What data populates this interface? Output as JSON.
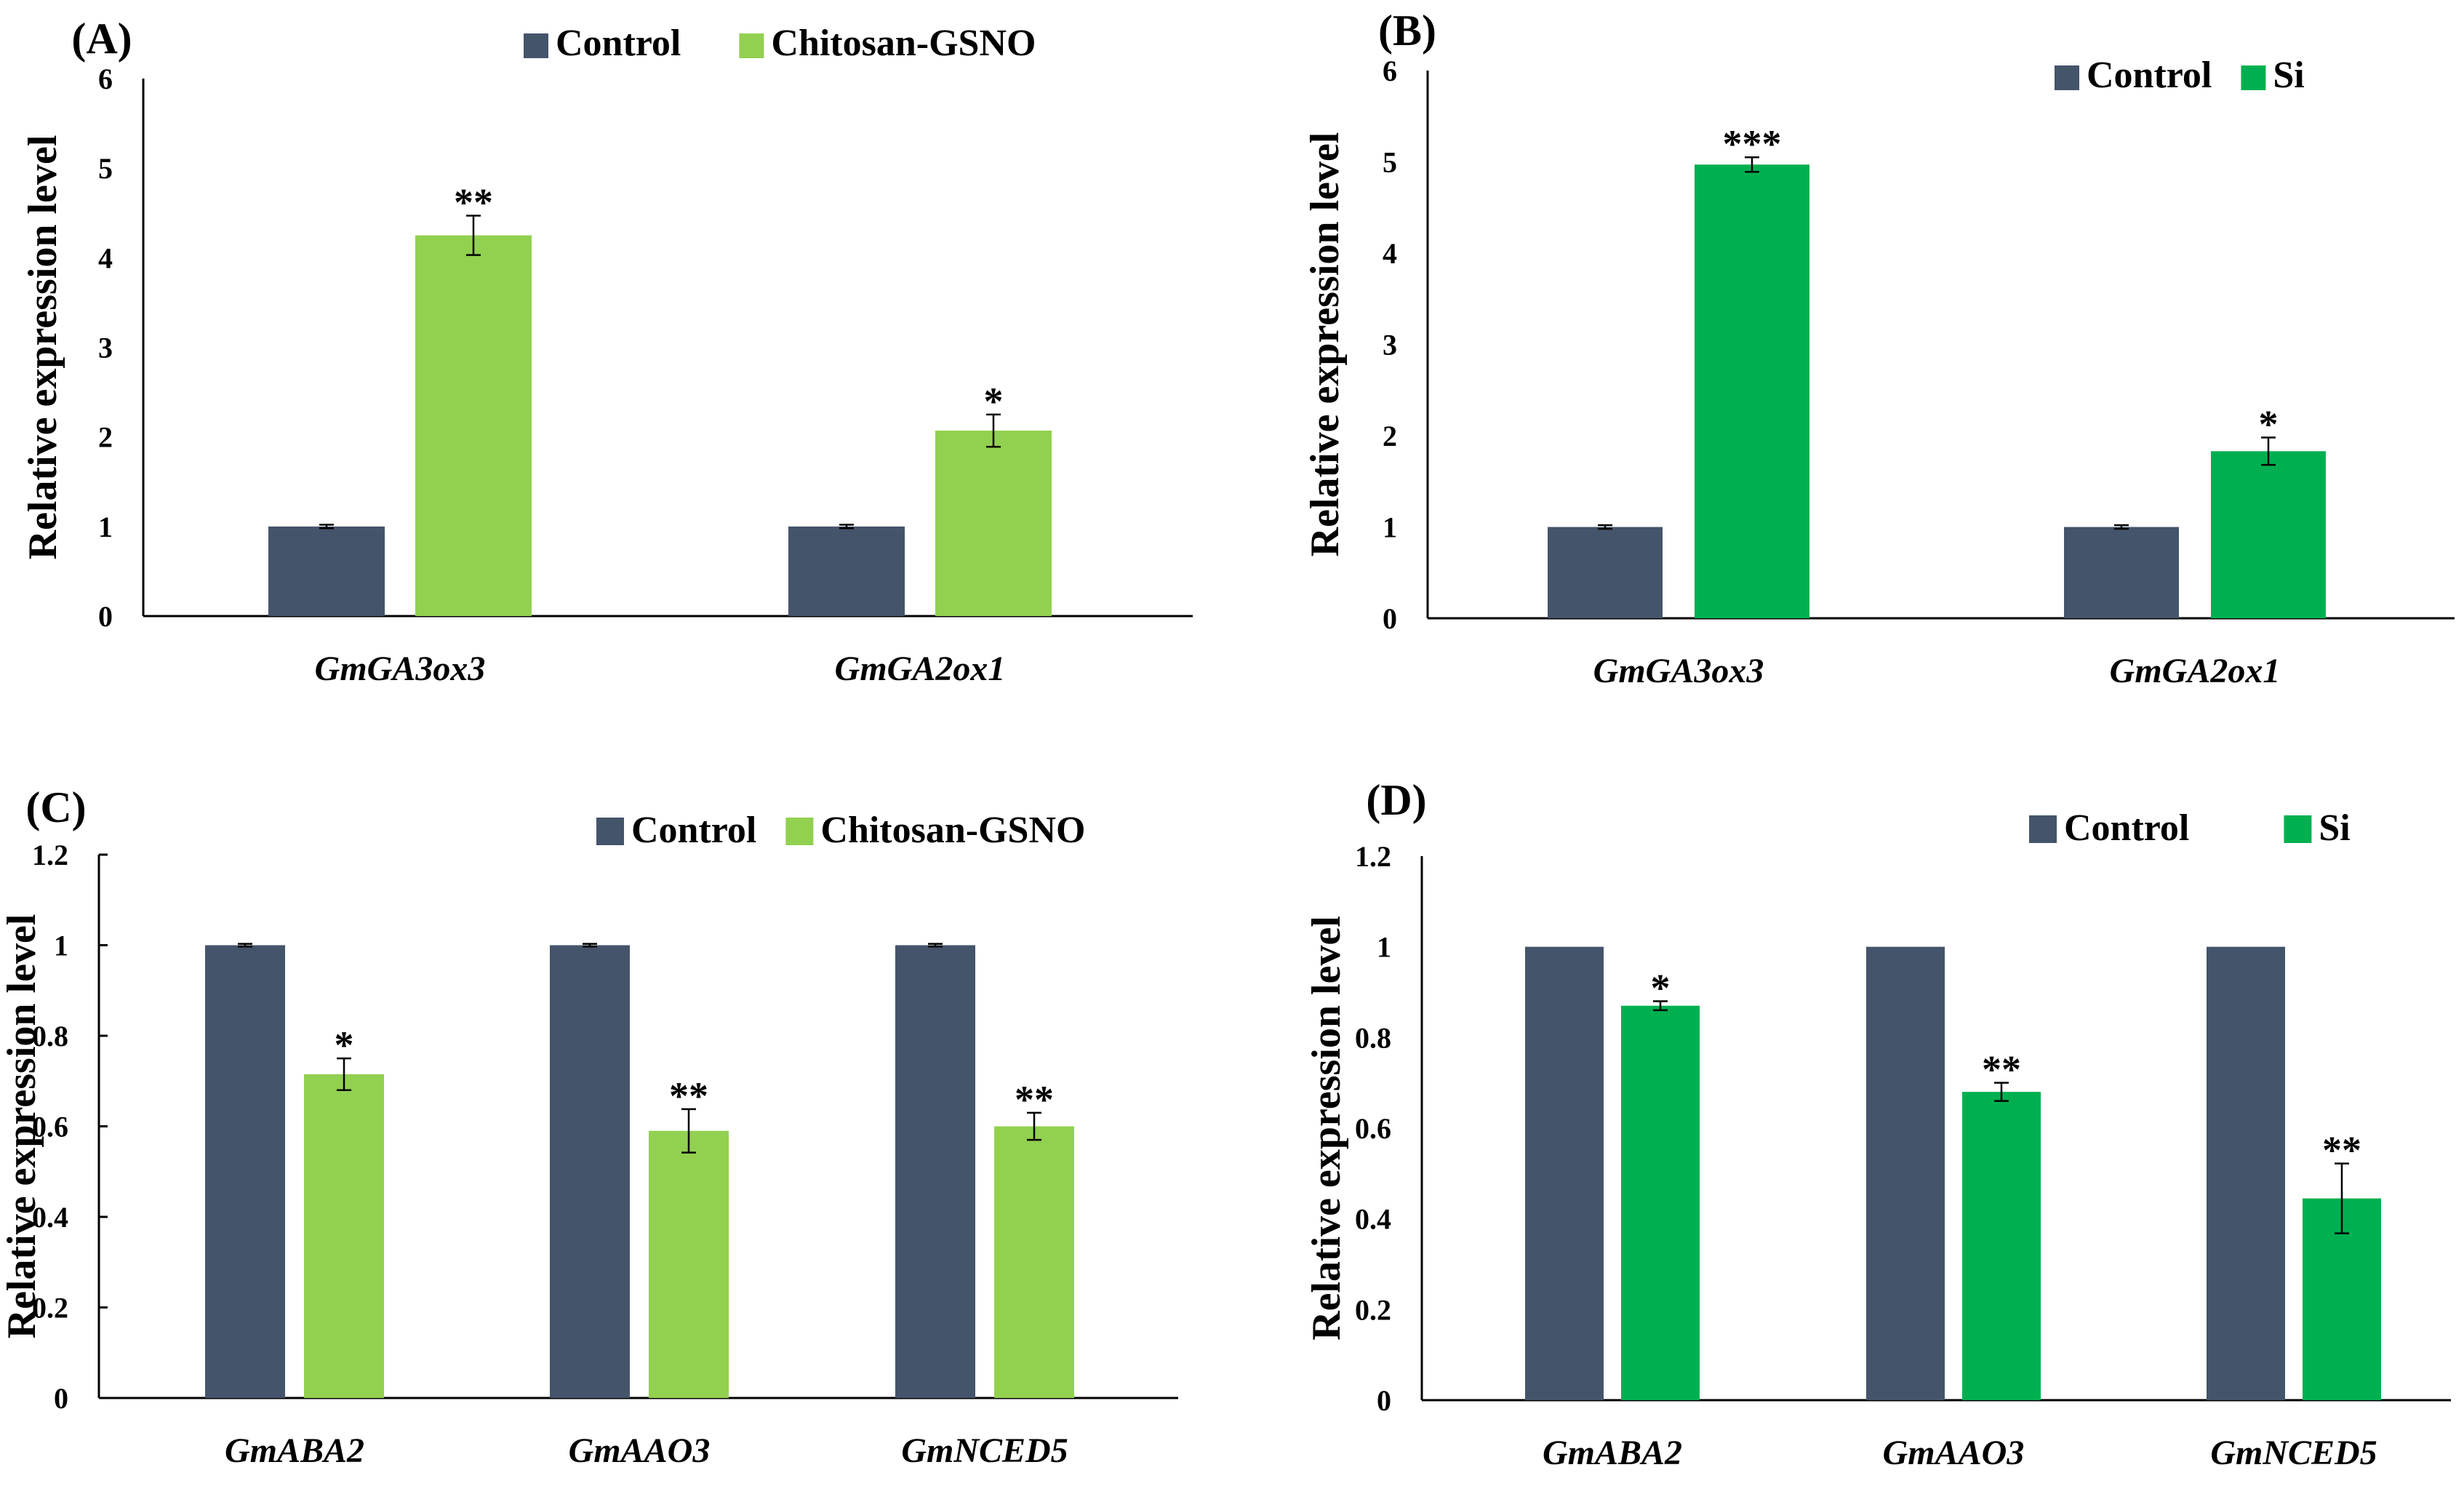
{
  "colors": {
    "control": "#44546A",
    "chitosan": "#92D050",
    "si": "#00B050",
    "axis": "#000000"
  },
  "chart_data": [
    {
      "panel": "(A)",
      "type": "bar",
      "ylabel": "Relative expression level",
      "ylim": [
        0,
        6
      ],
      "yticks": [
        "0",
        "1",
        "2",
        "3",
        "4",
        "5",
        "6"
      ],
      "legend_position": "top-right",
      "categories": [
        "GmGA3ox3",
        "GmGA2ox1"
      ],
      "series": [
        {
          "name": "Control",
          "color_key": "control",
          "values": [
            1.0,
            1.0
          ],
          "errors": [
            0.02,
            0.02
          ],
          "sig": [
            "",
            ""
          ]
        },
        {
          "name": "Chitosan-GSNO",
          "color_key": "chitosan",
          "values": [
            4.25,
            2.07
          ],
          "errors": [
            0.22,
            0.18
          ],
          "sig": [
            "**",
            "*"
          ]
        }
      ]
    },
    {
      "panel": "(B)",
      "type": "bar",
      "ylabel": "Relative expression level",
      "ylim": [
        0,
        6
      ],
      "yticks": [
        "0",
        "1",
        "2",
        "3",
        "4",
        "5",
        "6"
      ],
      "legend_position": "top-right",
      "categories": [
        "GmGA3ox3",
        "GmGA2ox1"
      ],
      "series": [
        {
          "name": "Control",
          "color_key": "control",
          "values": [
            1.0,
            1.0
          ],
          "errors": [
            0.02,
            0.02
          ],
          "sig": [
            "",
            ""
          ]
        },
        {
          "name": "Si",
          "color_key": "si",
          "values": [
            4.97,
            1.83
          ],
          "errors": [
            0.08,
            0.15
          ],
          "sig": [
            "***",
            "*"
          ]
        }
      ]
    },
    {
      "panel": "(C)",
      "type": "bar",
      "ylabel": "Relative expression level",
      "ylim": [
        0,
        1.2
      ],
      "yticks": [
        "0",
        "0.2",
        "0.4",
        "0.6",
        "0.8",
        "1",
        "1.2"
      ],
      "legend_position": "top-right",
      "categories": [
        "GmABA2",
        "GmAAO3",
        "GmNCED5"
      ],
      "series": [
        {
          "name": "Control",
          "color_key": "control",
          "values": [
            1.0,
            1.0,
            1.0
          ],
          "errors": [
            0.003,
            0.003,
            0.003
          ],
          "sig": [
            "",
            "",
            ""
          ]
        },
        {
          "name": "Chitosan-GSNO",
          "color_key": "chitosan",
          "values": [
            0.715,
            0.59,
            0.6
          ],
          "errors": [
            0.035,
            0.048,
            0.03
          ],
          "sig": [
            "*",
            "**",
            "**"
          ]
        }
      ]
    },
    {
      "panel": "(D)",
      "type": "bar",
      "ylabel": "Relative expression level",
      "ylim": [
        0,
        1.2
      ],
      "yticks": [
        "0",
        "0.2",
        "0.4",
        "0.6",
        "0.8",
        "1",
        "1.2"
      ],
      "legend_position": "top-right",
      "categories": [
        "GmABA2",
        "GmAAO3",
        "GmNCED5"
      ],
      "series": [
        {
          "name": "Control",
          "color_key": "control",
          "values": [
            1.0,
            1.0,
            1.0
          ],
          "errors": [
            0,
            0,
            0
          ],
          "sig": [
            "",
            "",
            ""
          ]
        },
        {
          "name": "Si",
          "color_key": "si",
          "values": [
            0.87,
            0.68,
            0.445
          ],
          "errors": [
            0.01,
            0.02,
            0.077
          ],
          "sig": [
            "*",
            "**",
            "**"
          ]
        }
      ]
    }
  ]
}
